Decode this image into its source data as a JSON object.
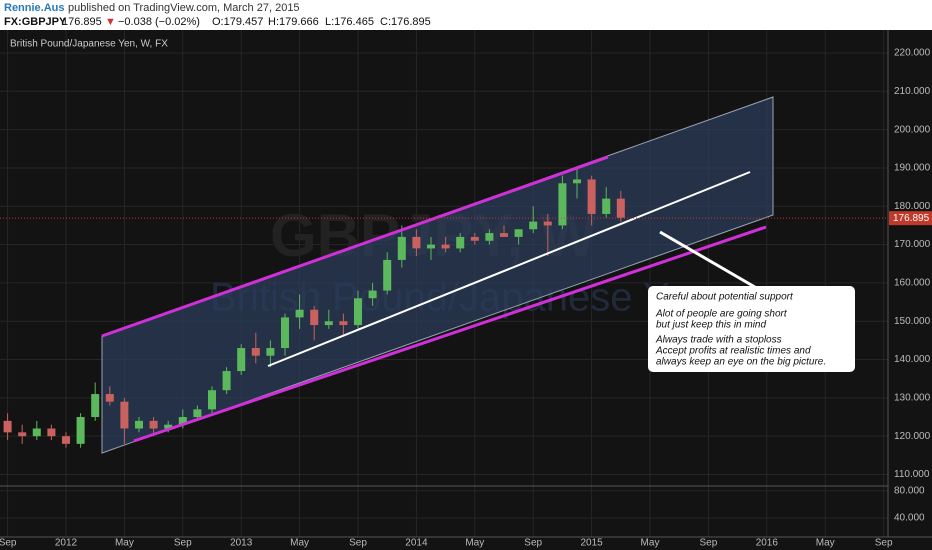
{
  "header": {
    "author": "Rennie.Aus",
    "published": "published on TradingView.com, March 27, 2015",
    "symbol": "FX:GBPJPY",
    "price": "176.895",
    "arrow": "▼",
    "change": "−0.038 (−0.02%)",
    "open": "O:179.457",
    "high": "H:179.666",
    "low": "L:176.465",
    "close": "C:176.895"
  },
  "chart_data": {
    "type": "candlestick",
    "title": "British Pound/Japanese Yen, W, FX",
    "watermark": "GBPJPY, W",
    "watermark_sub": "British Pound/Japanese Yen",
    "x": [
      -4,
      -3,
      -2,
      -1,
      0,
      1,
      2,
      3,
      4,
      5,
      6,
      7,
      8,
      9,
      10,
      11,
      12,
      13,
      14,
      15,
      16,
      17,
      18,
      19,
      20,
      21,
      22,
      23,
      24,
      25,
      26,
      27,
      28,
      29,
      30,
      31,
      32,
      33,
      34,
      35,
      36,
      37,
      38
    ],
    "open": [
      124,
      121,
      120,
      122,
      120,
      118,
      125,
      131,
      129,
      122,
      124,
      122,
      123,
      125,
      127,
      132,
      137,
      143,
      141,
      143,
      151,
      153,
      149,
      150,
      149,
      156,
      158,
      166,
      172,
      169,
      170,
      169,
      172,
      171,
      173,
      172,
      174,
      176,
      175,
      186,
      187,
      178,
      182
    ],
    "high": [
      126,
      123,
      124,
      123,
      121,
      126,
      134,
      133,
      130,
      125,
      125,
      124,
      127,
      128,
      133,
      138,
      144,
      147,
      145,
      152,
      157,
      154,
      153,
      152,
      158,
      160,
      168,
      175,
      174,
      172,
      172,
      173,
      173,
      174,
      175,
      174,
      180,
      178,
      188,
      190,
      188,
      185,
      184
    ],
    "low": [
      119,
      118,
      119,
      119,
      117,
      117,
      124,
      128,
      118,
      121,
      120,
      121,
      122,
      124,
      126,
      131,
      136,
      139,
      138,
      141,
      148,
      145,
      148,
      146,
      148,
      154,
      157,
      164,
      167,
      166,
      168,
      168,
      170,
      170,
      172,
      170,
      173,
      167,
      174,
      182,
      175,
      177,
      176
    ],
    "close": [
      121,
      120,
      122,
      120,
      118,
      125,
      131,
      129,
      122,
      124,
      122,
      123,
      125,
      127,
      132,
      137,
      143,
      141,
      143,
      151,
      153,
      149,
      150,
      149,
      156,
      158,
      166,
      172,
      169,
      170,
      169,
      172,
      171,
      173,
      172,
      174,
      176,
      175,
      186,
      187,
      178,
      182,
      177
    ],
    "up_color": "#5cb85c",
    "down_color": "#c9615f",
    "last_price": 176.895,
    "xlim": [
      -4.52,
      56.3
    ],
    "xticks": [
      {
        "value": -4,
        "label": "Sep"
      },
      {
        "value": 0,
        "label": "2012"
      },
      {
        "value": 4,
        "label": "May"
      },
      {
        "value": 8,
        "label": "Sep"
      },
      {
        "value": 12,
        "label": "2013"
      },
      {
        "value": 16,
        "label": "May"
      },
      {
        "value": 20,
        "label": "Sep"
      },
      {
        "value": 24,
        "label": "2014"
      },
      {
        "value": 28,
        "label": "May"
      },
      {
        "value": 32,
        "label": "Sep"
      },
      {
        "value": 36,
        "label": "2015"
      },
      {
        "value": 40,
        "label": "May"
      },
      {
        "value": 44,
        "label": "Sep"
      },
      {
        "value": 48,
        "label": "2016"
      },
      {
        "value": 52,
        "label": "May"
      },
      {
        "value": 56,
        "label": "Sep"
      }
    ],
    "ylim": [
      107,
      226
    ],
    "yticks": [
      {
        "value": 110,
        "label": "110.000"
      },
      {
        "value": 120,
        "label": "120.000"
      },
      {
        "value": 130,
        "label": "130.000"
      },
      {
        "value": 140,
        "label": "140.000"
      },
      {
        "value": 150,
        "label": "150.000"
      },
      {
        "value": 160,
        "label": "160.000"
      },
      {
        "value": 170,
        "label": "170.000"
      },
      {
        "value": 180,
        "label": "180.000"
      },
      {
        "value": 190,
        "label": "190.000"
      },
      {
        "value": 200,
        "label": "200.000"
      },
      {
        "value": 210,
        "label": "210.000"
      },
      {
        "value": 220,
        "label": "220.000"
      }
    ],
    "y2lim": [
      12,
      87
    ],
    "y2ticks": [
      {
        "value": 40,
        "label": "40.000"
      },
      {
        "value": 80,
        "label": "80.000"
      }
    ],
    "grid": true,
    "annotation": [
      "Careful about potential support",
      "Alot of people are going short",
      "but just keep this in mind",
      "Always trade with a stoploss",
      "Accept profits at realistic times and",
      "always keep an eye on the big picture."
    ]
  }
}
